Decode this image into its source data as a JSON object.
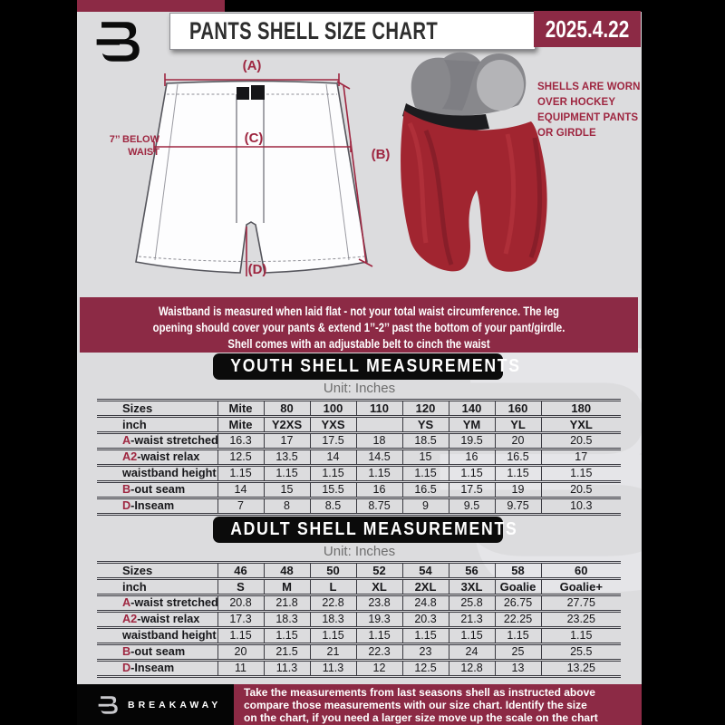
{
  "page": {
    "title": "PANTS SHELL SIZE CHART",
    "date": "2025.4.22"
  },
  "diagram": {
    "label_a": "(A)",
    "label_b": "(B)",
    "label_c": "(C)",
    "label_d": "(D)",
    "below_waist_1": "7’’ BELOW",
    "below_waist_2": "WAIST",
    "note_lines": [
      "SHELLS ARE WORN",
      "OVER HOCKEY",
      "EQUIPMENT PANTS",
      "OR GIRDLE"
    ]
  },
  "info_banner": {
    "lines": [
      "Waistband is measured when laid flat - not your total waist circumference. The leg",
      "opening should cover your pants & extend 1’’-2’’ past the bottom of your pant/girdle.",
      "Shell comes with an adjustable belt to cinch the waist"
    ]
  },
  "youth": {
    "heading": "YOUTH SHELL MEASUREMENTS",
    "unit": "Unit: Inches",
    "rows": [
      {
        "prefix": "",
        "label": "Sizes",
        "header": true,
        "values": [
          "Mite",
          "80",
          "100",
          "110",
          "120",
          "140",
          "160",
          "180"
        ]
      },
      {
        "prefix": "",
        "label": "inch",
        "header": true,
        "values": [
          "Mite",
          "Y2XS",
          "YXS",
          "",
          "YS",
          "YM",
          "YL",
          "YXL"
        ]
      },
      {
        "prefix": "A",
        "label": "-waist stretched",
        "header": false,
        "values": [
          "16.3",
          "17",
          "17.5",
          "18",
          "18.5",
          "19.5",
          "20",
          "20.5"
        ]
      },
      {
        "prefix": "A2",
        "label": "-waist relax",
        "header": false,
        "values": [
          "12.5",
          "13.5",
          "14",
          "14.5",
          "15",
          "16",
          "16.5",
          "17"
        ]
      },
      {
        "prefix": "",
        "label": "waistband height",
        "header": false,
        "values": [
          "1.15",
          "1.15",
          "1.15",
          "1.15",
          "1.15",
          "1.15",
          "1.15",
          "1.15"
        ]
      },
      {
        "prefix": "B",
        "label": "-out seam",
        "header": false,
        "values": [
          "14",
          "15",
          "15.5",
          "16",
          "16.5",
          "17.5",
          "19",
          "20.5"
        ]
      },
      {
        "prefix": "D",
        "label": "-Inseam",
        "header": false,
        "values": [
          "7",
          "8",
          "8.5",
          "8.75",
          "9",
          "9.5",
          "9.75",
          "10.3"
        ]
      }
    ]
  },
  "adult": {
    "heading": "ADULT SHELL MEASUREMENTS",
    "unit": "Unit: Inches",
    "rows": [
      {
        "prefix": "",
        "label": "Sizes",
        "header": true,
        "values": [
          "46",
          "48",
          "50",
          "52",
          "54",
          "56",
          "58",
          "60"
        ]
      },
      {
        "prefix": "",
        "label": "inch",
        "header": true,
        "values": [
          "S",
          "M",
          "L",
          "XL",
          "2XL",
          "3XL",
          "Goalie",
          "Goalie+"
        ]
      },
      {
        "prefix": "A",
        "label": "-waist stretched",
        "header": false,
        "values": [
          "20.8",
          "21.8",
          "22.8",
          "23.8",
          "24.8",
          "25.8",
          "26.75",
          "27.75"
        ]
      },
      {
        "prefix": "A2",
        "label": "-waist relax",
        "header": false,
        "values": [
          "17.3",
          "18.3",
          "18.3",
          "19.3",
          "20.3",
          "21.3",
          "22.25",
          "23.25"
        ]
      },
      {
        "prefix": "",
        "label": "waistband height",
        "header": false,
        "values": [
          "1.15",
          "1.15",
          "1.15",
          "1.15",
          "1.15",
          "1.15",
          "1.15",
          "1.15"
        ]
      },
      {
        "prefix": "B",
        "label": "-out seam",
        "header": false,
        "values": [
          "20",
          "21.5",
          "21",
          "22.3",
          "23",
          "24",
          "25",
          "25.5"
        ]
      },
      {
        "prefix": "D",
        "label": "-Inseam",
        "header": false,
        "values": [
          "11",
          "11.3",
          "11.3",
          "12",
          "12.5",
          "12.8",
          "13",
          "13.25"
        ]
      }
    ]
  },
  "footer": {
    "brand": "BREAKAWAY",
    "lines": [
      "Take the measurements from last seasons shell as instructed above",
      "compare those measurements  with our size chart. Identify the size",
      "on the chart, if you need a larger size move up the scale on the chart"
    ]
  },
  "colors": {
    "maroon": "#8c2a45",
    "crimson": "#9e2640",
    "sheet_bg": "#dcdcde",
    "banner_black": "#0b0b0b",
    "red_shell": "#a12530",
    "table_line": "#393940"
  }
}
